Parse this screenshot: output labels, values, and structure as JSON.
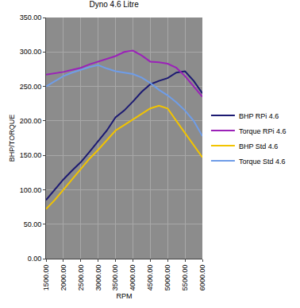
{
  "chart_data": {
    "type": "line",
    "title": "Dyno 4.6 Litre",
    "x_label": "RPM",
    "y_label": "BHP/TORQUE",
    "x": [
      1500,
      1750,
      2000,
      2250,
      2500,
      2750,
      3000,
      3250,
      3500,
      3750,
      4000,
      4250,
      4500,
      4750,
      5000,
      5250,
      5500,
      5750,
      6000
    ],
    "series": [
      {
        "name": "BHP RPi 4.6",
        "color": "#1c1a72",
        "values": [
          85,
          100,
          115,
          128,
          140,
          155,
          170,
          186,
          205,
          215,
          228,
          242,
          253,
          258,
          262,
          270,
          272,
          258,
          240
        ]
      },
      {
        "name": "Torque RPi 4.6",
        "color": "#9b22b8",
        "values": [
          267,
          269,
          271,
          274,
          277,
          282,
          286,
          290,
          294,
          300,
          302,
          295,
          286,
          285,
          283,
          277,
          265,
          250,
          235
        ]
      },
      {
        "name": "BHP Std 4.6",
        "color": "#f2c400",
        "values": [
          72,
          85,
          100,
          115,
          130,
          145,
          158,
          172,
          186,
          194,
          202,
          210,
          218,
          222,
          218,
          200,
          182,
          165,
          147
        ]
      },
      {
        "name": "Torque Std 4.6",
        "color": "#6f9de8",
        "values": [
          250,
          258,
          265,
          270,
          274,
          278,
          281,
          276,
          272,
          270,
          268,
          263,
          255,
          245,
          237,
          227,
          215,
          200,
          178
        ]
      }
    ],
    "xlim": [
      1500,
      6000
    ],
    "xticks": [
      {
        "value": 1500,
        "label": "1500.00"
      },
      {
        "value": 2000,
        "label": "2000.00"
      },
      {
        "value": 2500,
        "label": "2500.00"
      },
      {
        "value": 3000,
        "label": "3000.00"
      },
      {
        "value": 3500,
        "label": "3500.00"
      },
      {
        "value": 4000,
        "label": "4000.00"
      },
      {
        "value": 4500,
        "label": "4500.00"
      },
      {
        "value": 5000,
        "label": "5000.00"
      },
      {
        "value": 5500,
        "label": "5500.00"
      },
      {
        "value": 6000,
        "label": "6000.00"
      }
    ],
    "ylim": [
      0,
      350
    ],
    "yticks": [
      {
        "value": 0,
        "label": "0.00"
      },
      {
        "value": 50,
        "label": "50.00"
      },
      {
        "value": 100,
        "label": "100.00"
      },
      {
        "value": 150,
        "label": "150.00"
      },
      {
        "value": 200,
        "label": "200.00"
      },
      {
        "value": 250,
        "label": "250.00"
      },
      {
        "value": 300,
        "label": "300.00"
      },
      {
        "value": 350,
        "label": "350.00"
      }
    ],
    "grid": true,
    "legend": "right"
  }
}
